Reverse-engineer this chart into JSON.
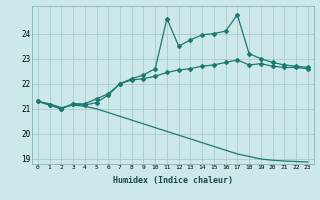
{
  "xlabel": "Humidex (Indice chaleur)",
  "bg_color": "#cce8e8",
  "grid_color": "#aacccc",
  "line_color": "#1a7a6e",
  "xlim": [
    -0.5,
    23.5
  ],
  "ylim": [
    18.8,
    25.1
  ],
  "yticks": [
    19,
    20,
    21,
    22,
    23,
    24
  ],
  "xticks": [
    0,
    1,
    2,
    3,
    4,
    5,
    6,
    7,
    8,
    9,
    10,
    11,
    12,
    13,
    14,
    15,
    16,
    17,
    18,
    19,
    20,
    21,
    22,
    23
  ],
  "series1_x": [
    0,
    1,
    2,
    3,
    4,
    5,
    6,
    7,
    8,
    9,
    10,
    11,
    12,
    13,
    14,
    15,
    16,
    17,
    18,
    19,
    20,
    21,
    22,
    23
  ],
  "series1_y": [
    21.3,
    21.15,
    21.0,
    21.2,
    21.15,
    21.25,
    21.55,
    22.0,
    22.15,
    22.2,
    22.3,
    22.45,
    22.55,
    22.6,
    22.7,
    22.75,
    22.85,
    22.95,
    22.75,
    22.8,
    22.7,
    22.65,
    22.65,
    22.6
  ],
  "series2_x": [
    0,
    1,
    2,
    3,
    4,
    5,
    6,
    7,
    8,
    9,
    10,
    11,
    12,
    13,
    14,
    15,
    16,
    17,
    18,
    19,
    20,
    21,
    22,
    23
  ],
  "series2_y": [
    21.3,
    21.15,
    21.0,
    21.2,
    21.2,
    21.4,
    21.6,
    22.0,
    22.2,
    22.35,
    22.6,
    24.6,
    23.5,
    23.75,
    23.95,
    24.0,
    24.1,
    24.75,
    23.2,
    23.0,
    22.85,
    22.75,
    22.7,
    22.65
  ],
  "series3_x": [
    0,
    1,
    2,
    3,
    4,
    5,
    6,
    7,
    8,
    9,
    10,
    11,
    12,
    13,
    14,
    15,
    16,
    17,
    18,
    19,
    20,
    21,
    22,
    23
  ],
  "series3_y": [
    21.3,
    21.2,
    21.05,
    21.15,
    21.1,
    21.0,
    20.85,
    20.7,
    20.55,
    20.4,
    20.25,
    20.1,
    19.95,
    19.8,
    19.65,
    19.5,
    19.35,
    19.2,
    19.1,
    19.0,
    18.95,
    18.92,
    18.9,
    18.88
  ]
}
